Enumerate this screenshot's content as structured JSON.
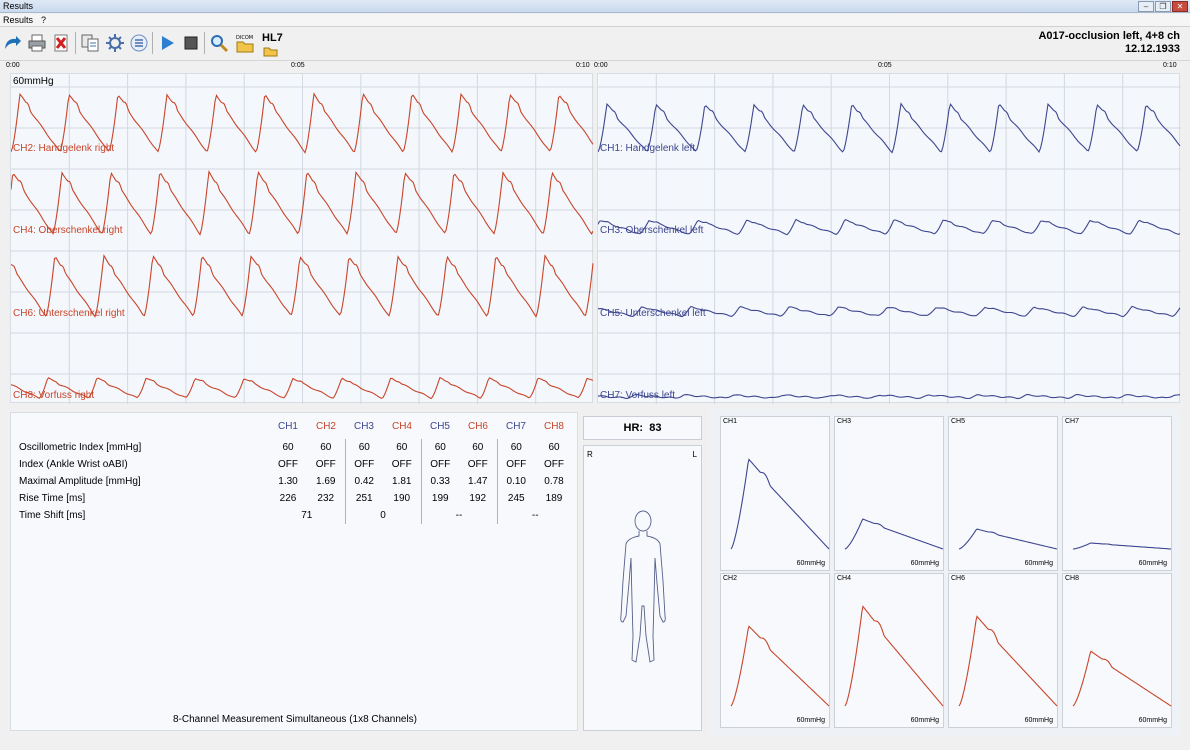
{
  "window": {
    "title": "Results"
  },
  "menu": [
    "Results",
    "?"
  ],
  "toolbar": {
    "hl7_label": "HL7",
    "dicom_label": "DICOM"
  },
  "patient": {
    "line1": "A017-occlusion left, 4+8 ch",
    "line2": "12.12.1933"
  },
  "ruler_left": {
    "start": "0:00",
    "mid": "0:05",
    "end": "0:10"
  },
  "ruler_right": {
    "start": "0:00",
    "mid": "0:05",
    "end": "0:10"
  },
  "waves": {
    "scale": "60mmHg",
    "left_channels": [
      "CH2: Handgelenk right",
      "CH4: Oberschenkel right",
      "CH6: Unterschenkel right",
      "CH8: Vorfuss right"
    ],
    "right_channels": [
      "CH1: Handgelenk left",
      "CH3: Oberschenkel left",
      "CH5: Unterschenkel left",
      "CH7: Vorfuss left"
    ],
    "left_color": "#c8452a",
    "right_color": "#3e4690"
  },
  "table": {
    "headers": [
      "CH1",
      "CH2",
      "CH3",
      "CH4",
      "CH5",
      "CH6",
      "CH7",
      "CH8"
    ],
    "rows": [
      {
        "label": "Oscillometric Index [mmHg]",
        "values": [
          "60",
          "60",
          "60",
          "60",
          "60",
          "60",
          "60",
          "60"
        ]
      },
      {
        "label": "Index (Ankle Wrist oABI)",
        "values": [
          "OFF",
          "OFF",
          "OFF",
          "OFF",
          "OFF",
          "OFF",
          "OFF",
          "OFF"
        ]
      },
      {
        "label": "Maximal Amplitude [mmHg]",
        "values": [
          "1.30",
          "1.69",
          "0.42",
          "1.81",
          "0.33",
          "1.47",
          "0.10",
          "0.78"
        ]
      },
      {
        "label": "Rise Time [ms]",
        "values": [
          "226",
          "232",
          "251",
          "190",
          "199",
          "192",
          "245",
          "189"
        ]
      }
    ],
    "timeshift_label": "Time Shift [ms]",
    "timeshift_values": [
      "71",
      "0",
      "--",
      "--"
    ],
    "caption": "8-Channel Measurement Simultaneous (1x8 Channels)"
  },
  "hr": {
    "label": "HR:",
    "value": "83"
  },
  "body": {
    "right": "R",
    "left": "L"
  },
  "mini": {
    "top": [
      "CH1",
      "CH3",
      "CH5",
      "CH7"
    ],
    "bottom": [
      "CH2",
      "CH4",
      "CH6",
      "CH8"
    ],
    "scale": "60mmHg"
  }
}
